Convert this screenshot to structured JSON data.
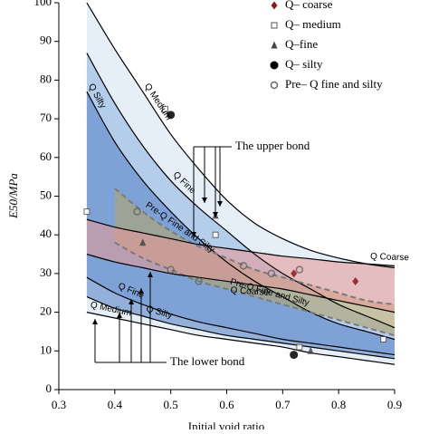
{
  "chart_data": {
    "type": "band",
    "xlabel": "Initial void ratio",
    "ylabel": "E50/MPa",
    "xlim": [
      0.3,
      0.9
    ],
    "xticks": [
      0.3,
      0.4,
      0.5,
      0.6,
      0.7,
      0.8,
      0.9
    ],
    "ylim": [
      0,
      100
    ],
    "yticks": [
      0,
      10,
      20,
      30,
      40,
      50,
      60,
      70,
      80,
      90,
      100
    ],
    "annotations": [
      "The upper bond",
      "The lower bond"
    ],
    "series": [
      {
        "name": "Q Medium",
        "color": "#d6e4f3",
        "line_color": "#000000",
        "dashed": false,
        "x": [
          0.35,
          0.4,
          0.45,
          0.5,
          0.55,
          0.6,
          0.65,
          0.7,
          0.75,
          0.8,
          0.85,
          0.9
        ],
        "upper": [
          100,
          88,
          77,
          66,
          57,
          49,
          43,
          39,
          36,
          34,
          32.5,
          31.5
        ],
        "lower": [
          20,
          18.5,
          17,
          15.5,
          14,
          13,
          12,
          11,
          9.5,
          8.5,
          7.5,
          6.5
        ]
      },
      {
        "name": "Q Fine",
        "color": "#93b6e2",
        "line_color": "#000000",
        "dashed": false,
        "x": [
          0.35,
          0.4,
          0.45,
          0.5,
          0.55,
          0.6,
          0.65,
          0.7,
          0.75,
          0.8,
          0.85,
          0.9
        ],
        "upper": [
          87,
          74,
          63,
          54,
          47,
          41,
          35,
          30,
          26,
          22,
          19,
          16
        ],
        "lower": [
          29,
          25,
          22,
          19.5,
          17.5,
          16,
          14.5,
          13,
          12,
          11,
          10,
          9
        ]
      },
      {
        "name": "Q Silty",
        "color": "#5a86c6",
        "line_color": "#000000",
        "dashed": false,
        "x": [
          0.35,
          0.4,
          0.45,
          0.5,
          0.55,
          0.6,
          0.65,
          0.7,
          0.75,
          0.8,
          0.85,
          0.9
        ],
        "upper": [
          77,
          64,
          54,
          46,
          39,
          33,
          28,
          24,
          20,
          17,
          15,
          13
        ],
        "lower": [
          24,
          21,
          19,
          17,
          15.5,
          14,
          13,
          12,
          11,
          10,
          9,
          8
        ]
      },
      {
        "name": "Pre-Q Fine and Silty",
        "color": "#b3a46a",
        "line_color": "#7a7a7a",
        "dashed": true,
        "x": [
          0.4,
          0.45,
          0.5,
          0.55,
          0.6,
          0.65,
          0.7,
          0.75,
          0.8,
          0.85,
          0.9
        ],
        "upper": [
          52,
          46,
          41,
          37,
          34,
          31,
          29,
          27,
          25,
          23,
          22
        ],
        "lower": [
          38,
          34,
          31,
          28,
          26,
          24,
          22,
          20,
          18,
          16,
          14
        ]
      },
      {
        "name": "Q Coarse",
        "color": "#e49a9a",
        "line_color": "#000000",
        "dashed": false,
        "x": [
          0.35,
          0.4,
          0.45,
          0.5,
          0.55,
          0.6,
          0.65,
          0.7,
          0.75,
          0.8,
          0.85,
          0.9
        ],
        "upper": [
          44,
          42,
          40.5,
          39,
          37.5,
          36.5,
          35.5,
          34.5,
          33.8,
          33,
          32.5,
          32
        ],
        "lower": [
          35,
          33,
          31.5,
          30,
          29,
          28,
          27,
          26,
          24.5,
          23,
          21.5,
          20
        ]
      }
    ],
    "points": [
      {
        "name": "Q– coarse",
        "marker": "diamond",
        "x": [
          0.83,
          0.72
        ],
        "y": [
          28,
          30
        ]
      },
      {
        "name": "Q– medium",
        "marker": "square",
        "x": [
          0.35,
          0.49,
          0.58,
          0.73,
          0.88
        ],
        "y": [
          46,
          72.5,
          40,
          11,
          13
        ]
      },
      {
        "name": "Q–fine",
        "marker": "triangle",
        "x": [
          0.58,
          0.75,
          0.45
        ],
        "y": [
          45,
          10,
          38
        ]
      },
      {
        "name": "Q– silty",
        "marker": "circle",
        "x": [
          0.5,
          0.72
        ],
        "y": [
          71,
          9
        ]
      },
      {
        "name": "Pre– Q fine and silty",
        "marker": "circle-open",
        "x": [
          0.44,
          0.5,
          0.55,
          0.63,
          0.68,
          0.73
        ],
        "y": [
          46,
          31,
          28,
          32,
          30,
          31
        ]
      }
    ]
  }
}
